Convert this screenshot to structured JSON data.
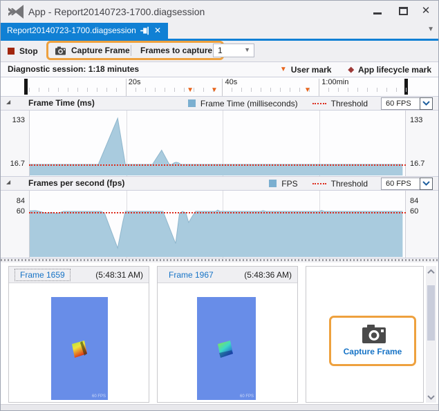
{
  "window": {
    "title": "App - Report20140723-1700.diagsession"
  },
  "tab": {
    "label": "Report20140723-1700.diagsession"
  },
  "toolbar": {
    "stop": "Stop",
    "capture_frame": "Capture Frame",
    "frames_to_capture": "Frames to capture",
    "frames_value": "1"
  },
  "session": {
    "duration": "Diagnostic session: 1:18 minutes",
    "user_mark": "User mark",
    "app_lifecycle_mark": "App lifecycle mark"
  },
  "ruler": {
    "ticks": [
      {
        "s": 20,
        "label": "20s"
      },
      {
        "s": 40,
        "label": "40s"
      },
      {
        "s": 60,
        "label": "1:00min"
      }
    ]
  },
  "timeline_marks": {
    "user_marks_seconds": [
      33.5,
      38.5,
      57.8
    ],
    "session_seconds": 78
  },
  "sections": {
    "frame_time": {
      "title": "Frame Time (ms)",
      "legend": "Frame Time (milliseconds)",
      "threshold_label": "Threshold",
      "fps_select": "60 FPS",
      "y_top": "133",
      "y_bottom": "16.7"
    },
    "fps": {
      "title": "Frames per second (fps)",
      "legend": "FPS",
      "threshold_label": "Threshold",
      "fps_select": "60 FPS",
      "y_top": "84",
      "y_bottom": "60"
    }
  },
  "frames_panel": {
    "cards": [
      {
        "label": "Frame 1659",
        "timestamp": "(5:48:31 AM)",
        "overlay": "60 FPS"
      },
      {
        "label": "Frame 1967",
        "timestamp": "(5:48:36 AM)",
        "overlay": "60 FPS"
      }
    ],
    "capture_button": "Capture Frame"
  },
  "colors": {
    "accent_blue": "#1080D4",
    "chart_fill": "#A9CBDE",
    "chart_stroke": "#8FB6CC",
    "threshold_red": "#DC2B1C",
    "callout_orange": "#EEA13E",
    "stop_red": "#A1260D",
    "user_mark_orange": "#E8641B",
    "lifecycle_maroon": "#9E3A38",
    "link_blue": "#1673C6",
    "thumbnail_blue": "#688DE8"
  },
  "chart_data": [
    {
      "type": "area",
      "title": "Frame Time (ms)",
      "ylabel_unit": "ms",
      "x_unit": "seconds",
      "x_range": [
        0,
        78
      ],
      "y_tick_labels": [
        133,
        16.7
      ],
      "threshold_value": 16.7,
      "threshold_setting": "60 FPS",
      "legend_position": "header-right",
      "grid_seconds": [
        20,
        40,
        60
      ],
      "series": [
        {
          "name": "Frame Time (milliseconds)",
          "points": [
            [
              0,
              16.7
            ],
            [
              14.2,
              16.7
            ],
            [
              18.2,
              140
            ],
            [
              19.8,
              16.7
            ],
            [
              25.4,
              16.7
            ],
            [
              27.3,
              55
            ],
            [
              28.9,
              16.7
            ],
            [
              29.4,
              16.7
            ],
            [
              29.9,
              21
            ],
            [
              30.3,
              22.5
            ],
            [
              30.8,
              21
            ],
            [
              31.3,
              16.7
            ],
            [
              77.2,
              16.7
            ]
          ]
        }
      ]
    },
    {
      "type": "area",
      "title": "Frames per second (fps)",
      "ylabel_unit": "fps",
      "x_unit": "seconds",
      "x_range": [
        0,
        78
      ],
      "y_tick_labels": [
        84,
        60
      ],
      "threshold_value": 60,
      "threshold_setting": "60 FPS",
      "legend_position": "header-right",
      "grid_seconds": [
        20,
        40,
        60
      ],
      "series": [
        {
          "name": "FPS",
          "points": [
            [
              0,
              61
            ],
            [
              1.2,
              61.5
            ],
            [
              2,
              60
            ],
            [
              3.5,
              57
            ],
            [
              4.5,
              58.5
            ],
            [
              5.5,
              56.5
            ],
            [
              7,
              60
            ],
            [
              14.8,
              60
            ],
            [
              15.5,
              57
            ],
            [
              18.2,
              4
            ],
            [
              19.3,
              45
            ],
            [
              19.8,
              60
            ],
            [
              27.6,
              60
            ],
            [
              30.2,
              11
            ],
            [
              31,
              57
            ],
            [
              31.6,
              60
            ],
            [
              32.3,
              58
            ],
            [
              32.9,
              43
            ],
            [
              33.6,
              52
            ],
            [
              34.3,
              60
            ],
            [
              38.5,
              60
            ],
            [
              38.9,
              62.5
            ],
            [
              39.4,
              60
            ],
            [
              47.8,
              60
            ],
            [
              48.3,
              61.5
            ],
            [
              48.9,
              60
            ],
            [
              60,
              60
            ],
            [
              60.4,
              62
            ],
            [
              61,
              60
            ],
            [
              77.2,
              60
            ]
          ]
        }
      ]
    }
  ]
}
